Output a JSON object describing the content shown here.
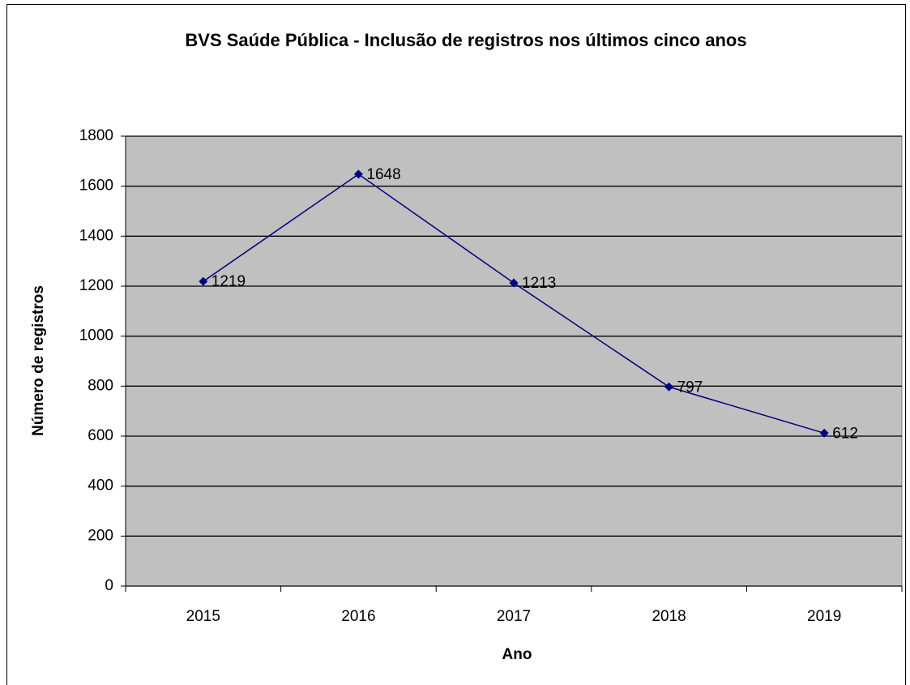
{
  "chart_data": {
    "type": "line",
    "title": "BVS Saúde Pública - Inclusão de registros nos últimos cinco anos",
    "x_label": "Ano",
    "y_label": "Número de registros",
    "categories": [
      "2015",
      "2016",
      "2017",
      "2018",
      "2019"
    ],
    "series": [
      {
        "name": "Número de registros",
        "color": "#000080",
        "values": [
          1219,
          1648,
          1213,
          797,
          612
        ]
      }
    ],
    "ylim": [
      0,
      1800
    ],
    "yticks": [
      0,
      200,
      400,
      600,
      800,
      1000,
      1200,
      1400,
      1600,
      1800
    ],
    "grid": true,
    "legend": false,
    "plot_background": "#c0c0c0"
  }
}
